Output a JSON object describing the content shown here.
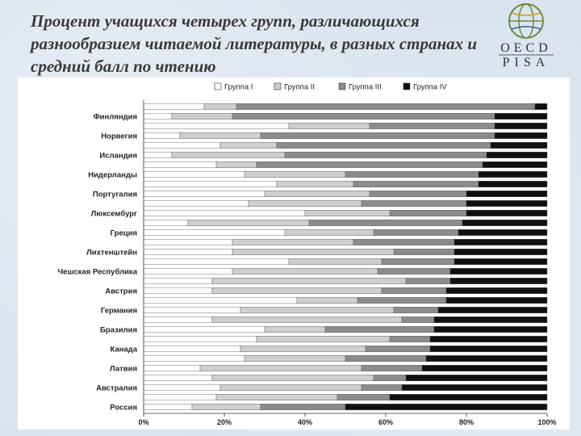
{
  "slide": {
    "title": "Процент учащихся четырех групп, различающихся разнообразием читаемой литературы, в разных странах и средний балл по чтению"
  },
  "logo": {
    "text_top": "OECD",
    "text_bottom": "PISA",
    "icon": "globe-logo-icon"
  },
  "chart_data": {
    "type": "bar",
    "orientation": "horizontal-stacked-100",
    "series_names": [
      "Группа I",
      "Группа II",
      "Группа III",
      "Группа IV"
    ],
    "colors": [
      "#ffffff",
      "#cfcfcf",
      "#8c8c8c",
      "#101010"
    ],
    "xlim": [
      0,
      100
    ],
    "x_ticks": [
      "0%",
      "20%",
      "40%",
      "60%",
      "80%",
      "100%"
    ],
    "category_labels": [
      "Финляндия",
      "Норвегия",
      "Исландия",
      "Нидерланды",
      "Португалия",
      "Люксембург",
      "Греция",
      "Лихтенштейн",
      "Чешская Республика",
      "Австрия",
      "Германия",
      "Бразилия",
      "Канада",
      "Латвия",
      "Австралия",
      "Россия"
    ],
    "rows": [
      {
        "label": "",
        "values": [
          15,
          8,
          74,
          3
        ]
      },
      {
        "label": "Финляндия",
        "values": [
          7,
          15,
          65,
          13
        ]
      },
      {
        "label": "",
        "values": [
          36,
          20,
          31,
          13
        ]
      },
      {
        "label": "Норвегия",
        "values": [
          9,
          20,
          58,
          13
        ]
      },
      {
        "label": "",
        "values": [
          19,
          14,
          53,
          14
        ]
      },
      {
        "label": "Исландия",
        "values": [
          7,
          28,
          50,
          15
        ]
      },
      {
        "label": "",
        "values": [
          18,
          10,
          56,
          16
        ]
      },
      {
        "label": "Нидерланды",
        "values": [
          25,
          25,
          33,
          17
        ]
      },
      {
        "label": "",
        "values": [
          33,
          19,
          31,
          17
        ]
      },
      {
        "label": "Португалия",
        "values": [
          30,
          26,
          24,
          20
        ]
      },
      {
        "label": "",
        "values": [
          26,
          28,
          26,
          20
        ]
      },
      {
        "label": "Люксембург",
        "values": [
          40,
          21,
          19,
          20
        ]
      },
      {
        "label": "",
        "values": [
          11,
          30,
          38,
          21
        ]
      },
      {
        "label": "Греция",
        "values": [
          35,
          22,
          21,
          22
        ]
      },
      {
        "label": "",
        "values": [
          22,
          30,
          25,
          23
        ]
      },
      {
        "label": "Лихтенштейн",
        "values": [
          22,
          40,
          15,
          23
        ]
      },
      {
        "label": "",
        "values": [
          36,
          23,
          18,
          23
        ]
      },
      {
        "label": "Чешская Республика",
        "values": [
          22,
          36,
          18,
          24
        ]
      },
      {
        "label": "",
        "values": [
          17,
          48,
          11,
          24
        ]
      },
      {
        "label": "Австрия",
        "values": [
          17,
          42,
          16,
          25
        ]
      },
      {
        "label": "",
        "values": [
          38,
          15,
          22,
          25
        ]
      },
      {
        "label": "Германия",
        "values": [
          24,
          38,
          11,
          27
        ]
      },
      {
        "label": "",
        "values": [
          17,
          47,
          8,
          28
        ]
      },
      {
        "label": "Бразилия",
        "values": [
          30,
          15,
          27,
          28
        ]
      },
      {
        "label": "",
        "values": [
          28,
          33,
          10,
          29
        ]
      },
      {
        "label": "Канада",
        "values": [
          24,
          31,
          16,
          29
        ]
      },
      {
        "label": "",
        "values": [
          25,
          25,
          20,
          30
        ]
      },
      {
        "label": "Латвия",
        "values": [
          14,
          40,
          15,
          31
        ]
      },
      {
        "label": "",
        "values": [
          17,
          40,
          8,
          35
        ]
      },
      {
        "label": "Австралия",
        "values": [
          19,
          35,
          10,
          36
        ]
      },
      {
        "label": "",
        "values": [
          18,
          30,
          13,
          39
        ]
      },
      {
        "label": "Россия",
        "values": [
          12,
          17,
          21,
          50
        ]
      }
    ]
  }
}
